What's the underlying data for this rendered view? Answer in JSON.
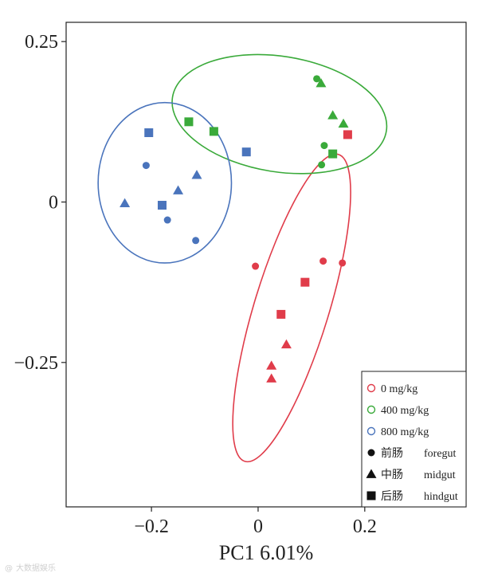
{
  "chart_data": {
    "type": "scatter",
    "title": "",
    "xlabel": "PC1 6.01%",
    "ylabel": "",
    "xlim": [
      -0.36,
      0.39
    ],
    "ylim": [
      -0.475,
      0.28
    ],
    "xticks": [
      {
        "v": -0.2,
        "label": "−0.2"
      },
      {
        "v": 0,
        "label": "0"
      },
      {
        "v": 0.2,
        "label": "0.2"
      }
    ],
    "yticks": [
      {
        "v": 0.25,
        "label": "0.25"
      },
      {
        "v": 0,
        "label": "0"
      },
      {
        "v": -0.25,
        "label": "−0.25"
      }
    ],
    "groups": [
      {
        "name": "0 mg/kg",
        "color": "#e03c4a",
        "ellipse": {
          "cx": 0.063,
          "cy": -0.165,
          "rx": 0.07,
          "ry": 0.25,
          "angle_deg": 17
        },
        "points": [
          {
            "x": -0.005,
            "y": -0.1,
            "shape": "circle"
          },
          {
            "x": 0.122,
            "y": -0.092,
            "shape": "circle"
          },
          {
            "x": 0.158,
            "y": -0.095,
            "shape": "circle"
          },
          {
            "x": 0.168,
            "y": 0.105,
            "shape": "square"
          },
          {
            "x": 0.088,
            "y": -0.125,
            "shape": "square"
          },
          {
            "x": 0.043,
            "y": -0.175,
            "shape": "square"
          },
          {
            "x": 0.053,
            "y": -0.222,
            "shape": "triangle"
          },
          {
            "x": 0.025,
            "y": -0.255,
            "shape": "triangle"
          },
          {
            "x": 0.025,
            "y": -0.275,
            "shape": "triangle"
          }
        ]
      },
      {
        "name": "400 mg/kg",
        "color": "#3aaa3a",
        "ellipse": {
          "cx": 0.04,
          "cy": 0.137,
          "rx": 0.203,
          "ry": 0.09,
          "angle_deg": 9
        },
        "points": [
          {
            "x": 0.11,
            "y": 0.192,
            "shape": "circle"
          },
          {
            "x": 0.124,
            "y": 0.088,
            "shape": "circle"
          },
          {
            "x": 0.119,
            "y": 0.058,
            "shape": "circle"
          },
          {
            "x": 0.118,
            "y": 0.185,
            "shape": "triangle"
          },
          {
            "x": 0.14,
            "y": 0.135,
            "shape": "triangle"
          },
          {
            "x": 0.16,
            "y": 0.122,
            "shape": "triangle"
          },
          {
            "x": -0.13,
            "y": 0.125,
            "shape": "square"
          },
          {
            "x": -0.083,
            "y": 0.11,
            "shape": "square"
          },
          {
            "x": 0.14,
            "y": 0.075,
            "shape": "square"
          }
        ]
      },
      {
        "name": "800 mg/kg",
        "color": "#4a74bc",
        "ellipse": {
          "cx": -0.175,
          "cy": 0.03,
          "rx": 0.125,
          "ry": 0.125,
          "angle_deg": 0
        },
        "points": [
          {
            "x": -0.21,
            "y": 0.057,
            "shape": "circle"
          },
          {
            "x": -0.17,
            "y": -0.028,
            "shape": "circle"
          },
          {
            "x": -0.117,
            "y": -0.06,
            "shape": "circle"
          },
          {
            "x": -0.25,
            "y": -0.002,
            "shape": "triangle"
          },
          {
            "x": -0.15,
            "y": 0.018,
            "shape": "triangle"
          },
          {
            "x": -0.115,
            "y": 0.042,
            "shape": "triangle"
          },
          {
            "x": -0.205,
            "y": 0.108,
            "shape": "square"
          },
          {
            "x": -0.18,
            "y": -0.005,
            "shape": "square"
          },
          {
            "x": -0.022,
            "y": 0.078,
            "shape": "square"
          }
        ]
      }
    ],
    "legend": {
      "placement": "bottom-right",
      "groups": [
        {
          "label": "0 mg/kg",
          "color": "#e03c4a"
        },
        {
          "label": "400 mg/kg",
          "color": "#3aaa3a"
        },
        {
          "label": "800 mg/kg",
          "color": "#4a74bc"
        }
      ],
      "shapes": [
        {
          "shape": "circle",
          "zh": "前肠",
          "en": "foregut"
        },
        {
          "shape": "triangle",
          "zh": "中肠",
          "en": "midgut"
        },
        {
          "shape": "square",
          "zh": "后肠",
          "en": "hindgut"
        }
      ]
    }
  },
  "watermark": "大数据娱乐"
}
